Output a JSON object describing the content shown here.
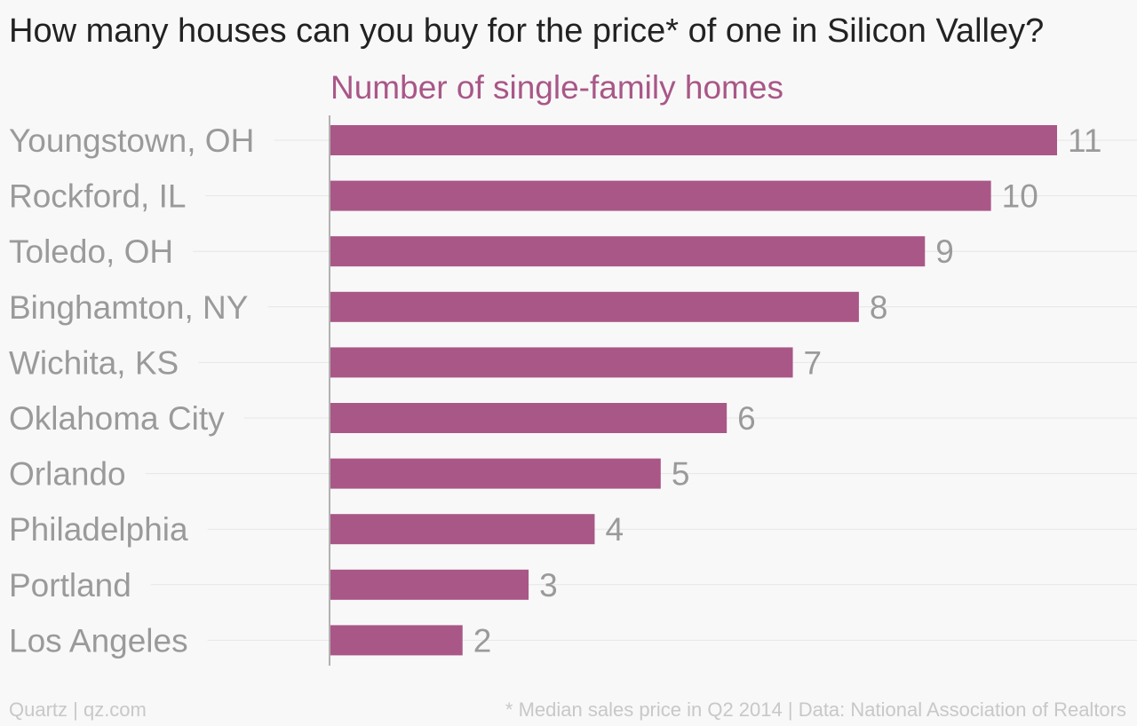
{
  "colors": {
    "bar": "#a95787",
    "subtitle": "#a95787",
    "label": "#9a9a9a",
    "grid": "#e6e6e6",
    "axis": "#999999"
  },
  "footer": {
    "left": "Quartz | qz.com",
    "right": "* Median sales price in Q2 2014 | Data: National Association of Realtors"
  },
  "chart_data": {
    "type": "bar",
    "orientation": "horizontal",
    "title": "How many houses can you buy for the price* of one in Silicon Valley?",
    "subtitle": "Number of single-family homes",
    "categories": [
      "Youngstown, OH",
      "Rockford, IL",
      "Toledo, OH",
      "Binghamton, NY",
      "Wichita, KS",
      "Oklahoma City",
      "Orlando",
      "Philadelphia",
      "Portland",
      "Los Angeles"
    ],
    "values": [
      11,
      10,
      9,
      8,
      7,
      6,
      5,
      4,
      3,
      2
    ],
    "data_labels": [
      "11",
      "10",
      "9",
      "8",
      "7",
      "6",
      "5",
      "4",
      "3",
      "2"
    ],
    "xlim": [
      0,
      11
    ],
    "grid": true,
    "legend": "none"
  }
}
